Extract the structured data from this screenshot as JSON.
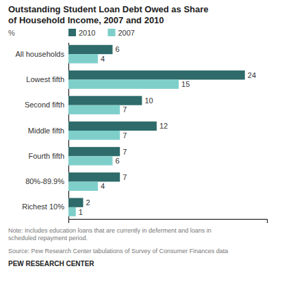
{
  "chart_data": {
    "type": "bar",
    "orientation": "horizontal",
    "title": "Outstanding Student Loan Debt Owed as Share\nof Household Income, 2007 and 2010",
    "xlabel": "%",
    "categories": [
      "All households",
      "Lowest fifth",
      "Second fifth",
      "Middle fifth",
      "Fourth fifth",
      "80%-89.9%",
      "Richest 10%"
    ],
    "series": [
      {
        "name": "2010",
        "color": "#2e6b6a",
        "values": [
          6,
          24,
          10,
          12,
          7,
          7,
          2
        ]
      },
      {
        "name": "2007",
        "color": "#7ecfca",
        "values": [
          4,
          15,
          7,
          7,
          6,
          4,
          1
        ]
      }
    ],
    "xlim": [
      0,
      27
    ],
    "tick_labels": "y",
    "data_labels": true,
    "legend": "top",
    "grid": false,
    "annotations": [
      "Note: Includes education loans that are currently in deferment and loans in\nscheduled repayment period.",
      "Source: Pew Research Center tabulations of Survey of Consumer Finances data",
      "PEW RESEARCH CENTER"
    ]
  }
}
